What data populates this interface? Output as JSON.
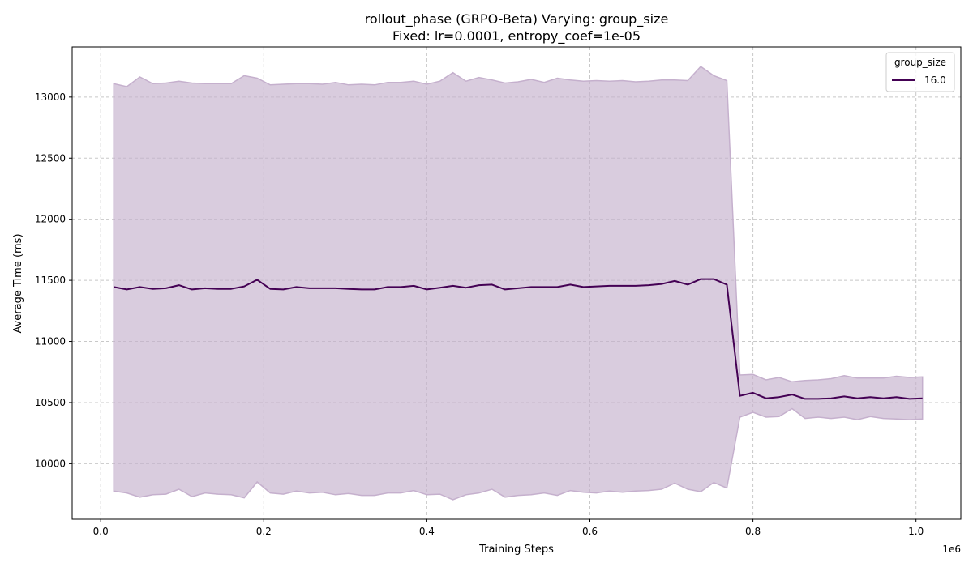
{
  "chart_data": {
    "type": "line",
    "title": "rollout_phase (GRPO-Beta) Varying: group_size",
    "subtitle": "Fixed: lr=0.0001, entropy_coef=1e-05",
    "xlabel": "Training Steps",
    "ylabel": "Average Time (ms)",
    "x_offset_label": "1e6",
    "xlim": [
      -0.035,
      1.055
    ],
    "ylim": [
      9545,
      13410
    ],
    "x_ticks": [
      0.0,
      0.2,
      0.4,
      0.6,
      0.8,
      1.0
    ],
    "x_tick_labels": [
      "0.0",
      "0.2",
      "0.4",
      "0.6",
      "0.8",
      "1.0"
    ],
    "y_ticks": [
      10000,
      10500,
      11000,
      11500,
      12000,
      12500,
      13000
    ],
    "y_tick_labels": [
      "10000",
      "10500",
      "11000",
      "11500",
      "12000",
      "12500",
      "13000"
    ],
    "grid": true,
    "legend": {
      "title": "group_size",
      "placement": "top-right"
    },
    "series": [
      {
        "name": "16.0",
        "color": "#440154",
        "band_color": "#c5b0cd",
        "x": [
          0.016,
          0.032,
          0.048,
          0.064,
          0.08,
          0.096,
          0.112,
          0.128,
          0.144,
          0.16,
          0.176,
          0.192,
          0.208,
          0.224,
          0.24,
          0.256,
          0.272,
          0.288,
          0.304,
          0.32,
          0.336,
          0.352,
          0.368,
          0.384,
          0.4,
          0.416,
          0.432,
          0.448,
          0.464,
          0.48,
          0.496,
          0.512,
          0.528,
          0.544,
          0.56,
          0.576,
          0.592,
          0.608,
          0.624,
          0.64,
          0.656,
          0.672,
          0.688,
          0.704,
          0.72,
          0.736,
          0.752,
          0.768,
          0.784,
          0.8,
          0.816,
          0.832,
          0.848,
          0.864,
          0.88,
          0.896,
          0.912,
          0.928,
          0.944,
          0.96,
          0.976,
          0.992,
          1.008
        ],
        "y": [
          11445,
          11425,
          11445,
          11430,
          11435,
          11460,
          11425,
          11435,
          11430,
          11430,
          11450,
          11505,
          11430,
          11425,
          11445,
          11435,
          11435,
          11435,
          11430,
          11425,
          11425,
          11445,
          11445,
          11455,
          11425,
          11440,
          11455,
          11440,
          11460,
          11465,
          11425,
          11435,
          11445,
          11445,
          11445,
          11465,
          11445,
          11450,
          11455,
          11455,
          11455,
          11460,
          11470,
          11495,
          11465,
          11510,
          11510,
          11465,
          10555,
          10580,
          10535,
          10545,
          10565,
          10530,
          10530,
          10535,
          10550,
          10535,
          10545,
          10535,
          10545,
          10530,
          10535
        ],
        "upper": [
          13110,
          13085,
          13165,
          13110,
          13115,
          13130,
          13115,
          13110,
          13110,
          13110,
          13175,
          13155,
          13100,
          13105,
          13110,
          13110,
          13105,
          13120,
          13100,
          13105,
          13100,
          13120,
          13120,
          13130,
          13105,
          13130,
          13200,
          13130,
          13160,
          13140,
          13115,
          13125,
          13145,
          13120,
          13155,
          13140,
          13130,
          13135,
          13130,
          13135,
          13125,
          13130,
          13140,
          13140,
          13135,
          13250,
          13175,
          13135,
          10725,
          10730,
          10685,
          10705,
          10670,
          10680,
          10685,
          10695,
          10720,
          10700,
          10700,
          10700,
          10715,
          10705,
          10710
        ],
        "lower": [
          9775,
          9760,
          9725,
          9745,
          9750,
          9790,
          9730,
          9760,
          9750,
          9745,
          9720,
          9850,
          9760,
          9750,
          9775,
          9760,
          9765,
          9745,
          9755,
          9740,
          9740,
          9760,
          9760,
          9780,
          9745,
          9750,
          9705,
          9745,
          9760,
          9790,
          9725,
          9740,
          9745,
          9760,
          9740,
          9780,
          9765,
          9760,
          9775,
          9765,
          9775,
          9780,
          9790,
          9840,
          9790,
          9770,
          9845,
          9800,
          10380,
          10420,
          10380,
          10385,
          10450,
          10370,
          10380,
          10370,
          10380,
          10360,
          10385,
          10370,
          10365,
          10360,
          10365
        ]
      }
    ]
  }
}
